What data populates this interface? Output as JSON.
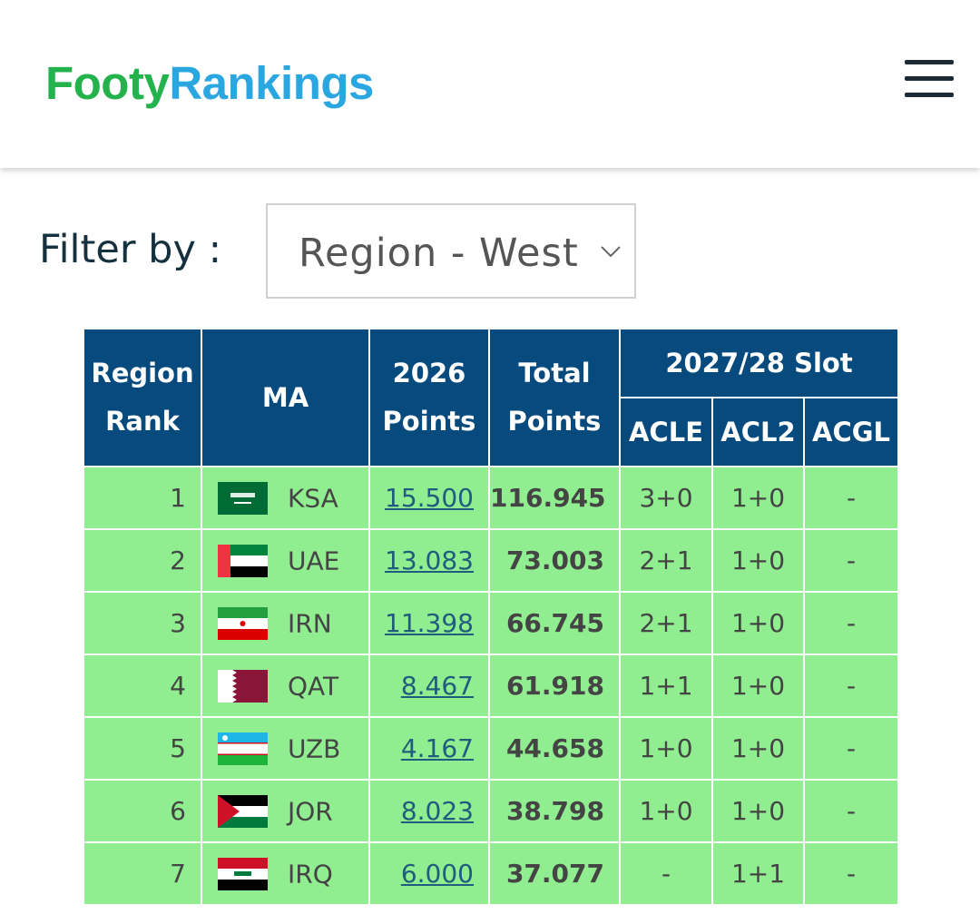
{
  "header": {
    "logo": {
      "part1": "Footy",
      "part2": "Rankings"
    }
  },
  "filter": {
    "label": "Filter by :",
    "selected": "Region - West"
  },
  "table": {
    "columns": [
      "Region Rank",
      "MA",
      "2026 Points",
      "Total Points"
    ],
    "group_header": "2027/28 Slot",
    "sub_columns": [
      "ACLE",
      "ACL2",
      "ACGL"
    ],
    "rows": [
      [
        "1",
        "KSA",
        "15.500",
        "116.945",
        "3+0",
        "1+0",
        "-"
      ],
      [
        "2",
        "UAE",
        "13.083",
        "73.003",
        "2+1",
        "1+0",
        "-"
      ],
      [
        "3",
        "IRN",
        "11.398",
        "66.745",
        "2+1",
        "1+0",
        "-"
      ],
      [
        "4",
        "QAT",
        "8.467",
        "61.918",
        "1+1",
        "1+0",
        "-"
      ],
      [
        "5",
        "UZB",
        "4.167",
        "44.658",
        "1+0",
        "1+0",
        "-"
      ],
      [
        "6",
        "JOR",
        "8.023",
        "38.798",
        "1+0",
        "1+0",
        "-"
      ],
      [
        "7",
        "IRQ",
        "6.000",
        "37.077",
        "-",
        "1+1",
        "-"
      ]
    ]
  }
}
